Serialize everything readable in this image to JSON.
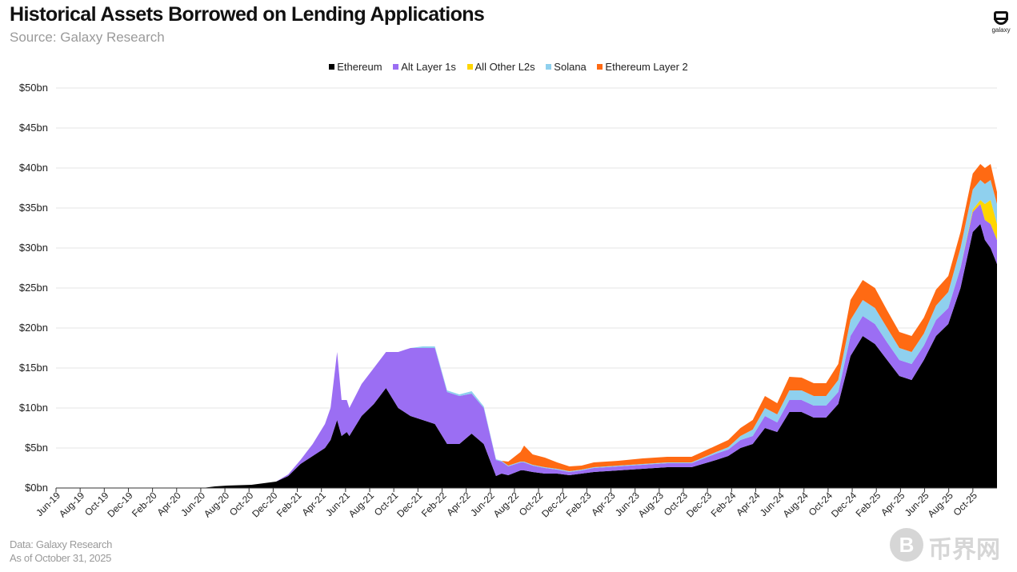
{
  "title": "Historical Assets Borrowed on Lending Applications",
  "subtitle": "Source: Galaxy Research",
  "logo_text": "galaxy",
  "footer": {
    "data_source": "Data: Galaxy Research",
    "as_of": "As of October 31, 2025"
  },
  "watermark": {
    "glyph": "B",
    "text": "币界网"
  },
  "colors": {
    "ethereum": "#000000",
    "alt_l1": "#9b6ef3",
    "other_l2": "#ffd600",
    "solana": "#8fd0ee",
    "eth_l2": "#ff6a13",
    "grid": "#e6e6e6"
  },
  "chart_data": {
    "type": "area",
    "stacked": true,
    "legend_position": "top",
    "grid": true,
    "ylim": [
      0,
      50
    ],
    "y_ticks": [
      {
        "v": 0,
        "label": "$0bn"
      },
      {
        "v": 5,
        "label": "$5bn"
      },
      {
        "v": 10,
        "label": "$10bn"
      },
      {
        "v": 15,
        "label": "$15bn"
      },
      {
        "v": 20,
        "label": "$20bn"
      },
      {
        "v": 25,
        "label": "$25bn"
      },
      {
        "v": 30,
        "label": "$30bn"
      },
      {
        "v": 35,
        "label": "$35bn"
      },
      {
        "v": 40,
        "label": "$40bn"
      },
      {
        "v": 45,
        "label": "$45bn"
      },
      {
        "v": 50,
        "label": "$50bn"
      }
    ],
    "x_ticks": [
      "Jun-19",
      "Aug-19",
      "Oct-19",
      "Dec-19",
      "Feb-20",
      "Apr-20",
      "Jun-20",
      "Aug-20",
      "Oct-20",
      "Dec-20",
      "Feb-21",
      "Apr-21",
      "Jun-21",
      "Aug-21",
      "Oct-21",
      "Dec-21",
      "Feb-22",
      "Apr-22",
      "Jun-22",
      "Aug-22",
      "Oct-22",
      "Dec-22",
      "Feb-23",
      "Apr-23",
      "Jun-23",
      "Aug-23",
      "Oct-23",
      "Dec-23",
      "Feb-24",
      "Apr-24",
      "Jun-24",
      "Aug-24",
      "Oct-24",
      "Dec-24",
      "Feb-25",
      "Apr-25",
      "Jun-25",
      "Aug-25",
      "Oct-25"
    ],
    "x": [
      "2019-06",
      "2019-08",
      "2019-10",
      "2019-12",
      "2020-02",
      "2020-04",
      "2020-06",
      "2020-07",
      "2020-08",
      "2020-10",
      "2020-12",
      "2021-01",
      "2021-02",
      "2021-03",
      "2021-04",
      "2021-04-15",
      "2021-05",
      "2021-05-12",
      "2021-05-25",
      "2021-06",
      "2021-07",
      "2021-08",
      "2021-09",
      "2021-10",
      "2021-11",
      "2021-12",
      "2022-01",
      "2022-02",
      "2022-03",
      "2022-04",
      "2022-05",
      "2022-06",
      "2022-06-15",
      "2022-07",
      "2022-08",
      "2022-08-10",
      "2022-09",
      "2022-10",
      "2022-11",
      "2022-12",
      "2023-01",
      "2023-02",
      "2023-04",
      "2023-06",
      "2023-08",
      "2023-10",
      "2023-12",
      "2024-01",
      "2024-02",
      "2024-03",
      "2024-04",
      "2024-05",
      "2024-06",
      "2024-07",
      "2024-08",
      "2024-09",
      "2024-10",
      "2024-11",
      "2024-12",
      "2025-01",
      "2025-02",
      "2025-03",
      "2025-04",
      "2025-05",
      "2025-06",
      "2025-07",
      "2025-08",
      "2025-09",
      "2025-09-20",
      "2025-10",
      "2025-10-15",
      "2025-10-31"
    ],
    "series": [
      {
        "name": "Ethereum",
        "values": [
          0,
          0,
          0,
          0,
          0,
          0,
          0,
          0.2,
          0.3,
          0.4,
          0.8,
          1.5,
          3.0,
          4.0,
          5.0,
          6.0,
          8.5,
          6.5,
          7.0,
          6.5,
          9.0,
          10.5,
          12.5,
          10.0,
          9.0,
          8.5,
          8.0,
          5.5,
          5.5,
          6.8,
          5.5,
          1.5,
          1.8,
          1.6,
          2.2,
          2.2,
          2.0,
          1.8,
          1.8,
          1.6,
          1.8,
          2.0,
          2.2,
          2.4,
          2.6,
          2.6,
          3.5,
          4.0,
          5.0,
          5.5,
          7.5,
          7.0,
          9.5,
          9.5,
          8.8,
          8.8,
          10.5,
          16.5,
          19.0,
          18.0,
          16.0,
          14.0,
          13.5,
          16.0,
          19.0,
          20.5,
          25.0,
          32.0,
          33.0,
          31.0,
          30.0,
          28.0
        ]
      },
      {
        "name": "Alt Layer 1s",
        "values": [
          0,
          0,
          0,
          0,
          0,
          0,
          0,
          0,
          0,
          0,
          0,
          0.2,
          0.5,
          1.5,
          3.0,
          4.0,
          8.5,
          4.5,
          4.0,
          3.5,
          4.0,
          4.5,
          4.5,
          7.0,
          8.5,
          9.0,
          9.5,
          6.5,
          6.0,
          5.0,
          4.5,
          2.0,
          1.5,
          1.1,
          1.0,
          1.0,
          0.8,
          0.7,
          0.5,
          0.4,
          0.4,
          0.5,
          0.5,
          0.5,
          0.5,
          0.5,
          0.8,
          0.8,
          1.0,
          1.0,
          1.5,
          1.2,
          1.5,
          1.5,
          1.5,
          1.5,
          1.5,
          2.5,
          2.5,
          2.5,
          2.2,
          2.0,
          2.0,
          1.8,
          2.0,
          2.0,
          2.5,
          2.5,
          2.5,
          2.5,
          3.0,
          3.0
        ]
      },
      {
        "name": "All Other L2s",
        "values": [
          0,
          0,
          0,
          0,
          0,
          0,
          0,
          0,
          0,
          0,
          0,
          0,
          0,
          0,
          0,
          0,
          0,
          0,
          0,
          0,
          0,
          0,
          0,
          0,
          0,
          0,
          0,
          0,
          0,
          0,
          0,
          0,
          0,
          0,
          0,
          0,
          0,
          0,
          0,
          0,
          0,
          0,
          0,
          0,
          0,
          0,
          0,
          0,
          0,
          0,
          0,
          0,
          0,
          0,
          0,
          0,
          0,
          0,
          0,
          0,
          0,
          0,
          0,
          0,
          0,
          0,
          0,
          0.3,
          0.5,
          2.0,
          3.0,
          2.0
        ]
      },
      {
        "name": "Solana",
        "values": [
          0,
          0,
          0,
          0,
          0,
          0,
          0,
          0,
          0,
          0,
          0,
          0,
          0,
          0,
          0,
          0,
          0,
          0,
          0,
          0,
          0,
          0,
          0,
          0,
          0,
          0.2,
          0.2,
          0.2,
          0.2,
          0.3,
          0.2,
          0.1,
          0.1,
          0.1,
          0.1,
          0.1,
          0.1,
          0.1,
          0.1,
          0.1,
          0.1,
          0.1,
          0.1,
          0.1,
          0.1,
          0.1,
          0.2,
          0.3,
          0.5,
          0.8,
          1.0,
          1.0,
          1.2,
          1.2,
          1.2,
          1.2,
          1.5,
          2.0,
          2.0,
          2.0,
          1.8,
          1.5,
          1.5,
          1.5,
          1.8,
          2.0,
          2.5,
          2.5,
          2.5,
          2.5,
          2.5,
          2.5
        ]
      },
      {
        "name": "Ethereum Layer 2",
        "values": [
          0,
          0,
          0,
          0,
          0,
          0,
          0,
          0,
          0,
          0,
          0,
          0,
          0,
          0,
          0,
          0,
          0,
          0,
          0,
          0,
          0,
          0,
          0,
          0,
          0,
          0,
          0,
          0,
          0,
          0,
          0,
          0,
          0,
          0.5,
          1.2,
          2.0,
          1.3,
          1.2,
          0.8,
          0.6,
          0.5,
          0.6,
          0.6,
          0.7,
          0.7,
          0.7,
          0.8,
          0.9,
          1.0,
          1.2,
          1.5,
          1.4,
          1.7,
          1.6,
          1.6,
          1.6,
          2.0,
          2.5,
          2.5,
          2.5,
          2.2,
          2.0,
          2.0,
          2.0,
          2.0,
          2.0,
          2.0,
          2.0,
          2.0,
          2.0,
          2.0,
          1.5
        ]
      }
    ]
  }
}
